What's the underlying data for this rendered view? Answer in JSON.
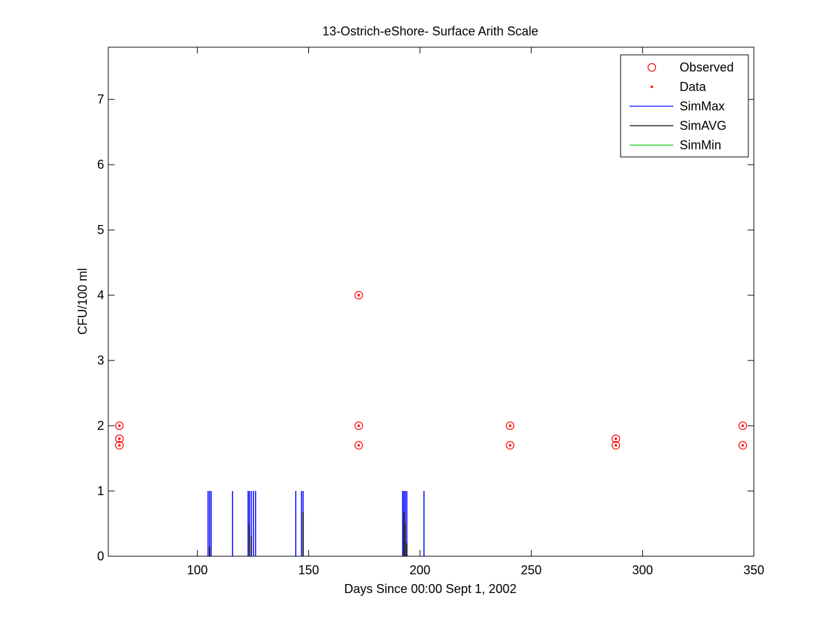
{
  "chart_data": {
    "type": "scatter",
    "title": "13-Ostrich-eShore- Surface Arith Scale",
    "xlabel": "Days Since 00:00 Sept 1, 2002",
    "ylabel": "CFU/100 ml",
    "xlim": [
      60,
      350
    ],
    "ylim": [
      0,
      7.8
    ],
    "xticks": [
      100,
      150,
      200,
      250,
      300,
      350
    ],
    "yticks": [
      0,
      1,
      2,
      3,
      4,
      5,
      6,
      7
    ],
    "grid": false,
    "legend_position": "top-right",
    "colors": {
      "observed": "#ff0000",
      "data": "#ff0000",
      "simmax": "#0000ff",
      "simavg": "#000000",
      "simmin": "#00cc00"
    },
    "legend": [
      "Observed",
      "Data",
      "SimMax",
      "SimAVG",
      "SimMin"
    ],
    "series": [
      {
        "name": "Observed",
        "kind": "marker-circle",
        "points": [
          [
            65,
            2
          ],
          [
            65,
            1.8
          ],
          [
            65,
            1.7
          ],
          [
            172.5,
            4
          ],
          [
            172.5,
            2
          ],
          [
            172.5,
            1.7
          ],
          [
            240.5,
            2
          ],
          [
            240.5,
            1.7
          ],
          [
            288,
            1.8
          ],
          [
            288,
            1.7
          ],
          [
            345,
            2
          ],
          [
            345,
            1.7
          ]
        ]
      },
      {
        "name": "Data",
        "kind": "marker-dot",
        "points": [
          [
            65,
            2
          ],
          [
            65,
            1.8
          ],
          [
            65,
            1.7
          ],
          [
            172.5,
            4
          ],
          [
            172.5,
            2
          ],
          [
            172.5,
            1.7
          ],
          [
            240.5,
            2
          ],
          [
            240.5,
            1.7
          ],
          [
            288,
            1.8
          ],
          [
            288,
            1.7
          ],
          [
            345,
            2
          ],
          [
            345,
            1.7
          ]
        ]
      },
      {
        "name": "SimMax",
        "kind": "spikes",
        "spikes": [
          [
            104.8,
            1
          ],
          [
            105.5,
            1
          ],
          [
            106.2,
            1
          ],
          [
            115.8,
            1
          ],
          [
            122.8,
            1
          ],
          [
            123.4,
            1
          ],
          [
            124.2,
            1
          ],
          [
            125.2,
            1
          ],
          [
            126.2,
            1
          ],
          [
            144.2,
            1
          ],
          [
            146.8,
            1
          ],
          [
            147.5,
            1
          ],
          [
            192.2,
            1
          ],
          [
            192.8,
            1
          ],
          [
            193.4,
            1
          ],
          [
            194.1,
            1
          ],
          [
            201.8,
            1
          ]
        ]
      },
      {
        "name": "SimAVG",
        "kind": "spikes",
        "spikes": [
          [
            105.5,
            0.15
          ],
          [
            123.4,
            0.5
          ],
          [
            124.2,
            0.3
          ],
          [
            147.5,
            0.68
          ],
          [
            192.8,
            0.68
          ],
          [
            193.4,
            0.5
          ],
          [
            194.1,
            0.2
          ]
        ]
      },
      {
        "name": "SimMin",
        "kind": "spikes",
        "spikes": []
      }
    ]
  }
}
